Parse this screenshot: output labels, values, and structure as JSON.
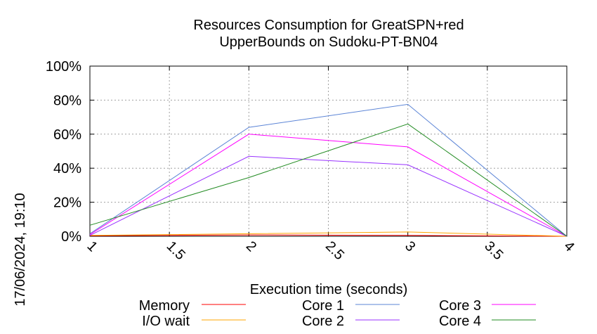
{
  "chart_data": {
    "type": "line",
    "title": [
      "Resources Consumption for GreatSPN+red",
      "UpperBounds on Sudoku-PT-BN04"
    ],
    "xlabel": "Execution time (seconds)",
    "ylabel": "",
    "timestamp": "17/06/2024, 19:10",
    "xlim": [
      1,
      4
    ],
    "ylim": [
      0,
      100
    ],
    "x_ticks": [
      1,
      1.5,
      2,
      2.5,
      3,
      3.5,
      4
    ],
    "x_tick_labels": [
      "1",
      "1.5",
      "2",
      "2.5",
      "3",
      "3.5",
      "4"
    ],
    "y_ticks": [
      0,
      20,
      40,
      60,
      80,
      100
    ],
    "y_tick_labels": [
      "0%",
      "20%",
      "40%",
      "60%",
      "80%",
      "100%"
    ],
    "grid": true,
    "legend_position": "bottom",
    "series": [
      {
        "name": "Memory",
        "color": "#ff0000",
        "x": [
          1,
          2,
          3,
          4
        ],
        "y": [
          0.3,
          0.8,
          0.5,
          0
        ]
      },
      {
        "name": "Core 1",
        "color": "#5b84d6",
        "x": [
          1,
          2,
          3,
          4
        ],
        "y": [
          1.5,
          64,
          77.5,
          0
        ]
      },
      {
        "name": "Core 3",
        "color": "#ff00ff",
        "x": [
          1,
          2,
          3,
          4
        ],
        "y": [
          1,
          60,
          52.5,
          0
        ]
      },
      {
        "name": "I/O wait",
        "color": "#ffa500",
        "x": [
          1,
          2,
          3,
          4
        ],
        "y": [
          0.5,
          1.5,
          2.5,
          0
        ]
      },
      {
        "name": "Core 2",
        "color": "#9932ff",
        "x": [
          1,
          2,
          3,
          4
        ],
        "y": [
          0.5,
          47,
          42,
          0
        ]
      },
      {
        "name": "Core 4",
        "color": "#228b22",
        "x": [
          1,
          2,
          3,
          4
        ],
        "y": [
          6.5,
          34.5,
          66,
          0
        ]
      }
    ]
  }
}
